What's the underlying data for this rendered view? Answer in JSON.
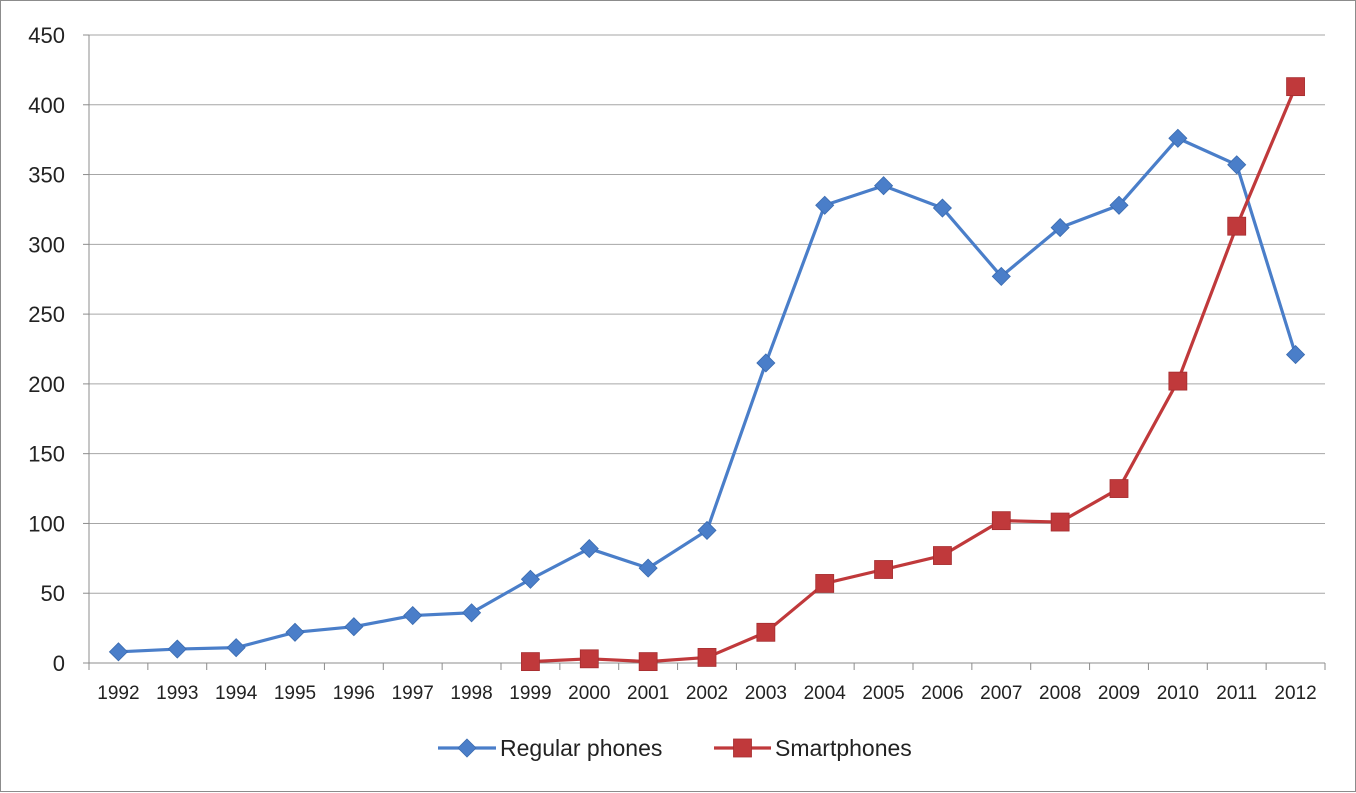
{
  "chart_data": {
    "type": "line",
    "title": "",
    "xlabel": "",
    "ylabel": "",
    "categories": [
      "1992",
      "1993",
      "1994",
      "1995",
      "1996",
      "1997",
      "1998",
      "1999",
      "2000",
      "2001",
      "2002",
      "2003",
      "2004",
      "2005",
      "2006",
      "2007",
      "2008",
      "2009",
      "2010",
      "2011",
      "2012"
    ],
    "ylim": [
      0,
      450
    ],
    "yticks": [
      "0",
      "50",
      "100",
      "150",
      "200",
      "250",
      "300",
      "350",
      "400",
      "450"
    ],
    "grid": true,
    "legend_position": "bottom",
    "series": [
      {
        "name": "Regular phones",
        "color": "#4a7ec9",
        "marker": "diamond",
        "values": [
          8,
          10,
          11,
          22,
          26,
          34,
          36,
          60,
          82,
          68,
          95,
          215,
          328,
          342,
          326,
          277,
          312,
          328,
          376,
          357,
          221
        ]
      },
      {
        "name": "Smartphones",
        "color": "#c0393b",
        "marker": "square",
        "values": [
          null,
          null,
          null,
          null,
          null,
          null,
          null,
          1,
          3,
          1,
          4,
          22,
          57,
          67,
          77,
          102,
          101,
          125,
          202,
          313,
          413
        ]
      }
    ]
  }
}
